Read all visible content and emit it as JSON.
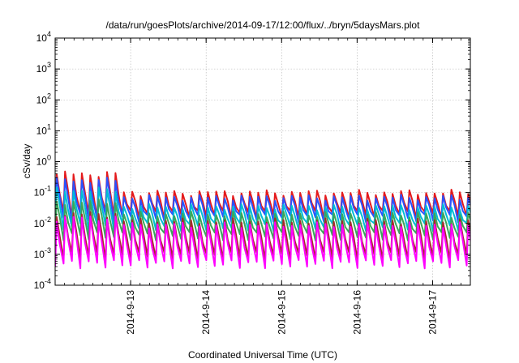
{
  "chart_data": {
    "type": "line",
    "title": "/data/run/goesPlots/archive/2014-09-17/12:00/flux/../bryn/5daysMars.plot",
    "xlabel": "Coordinated Universal Time (UTC)",
    "ylabel": "cSv/day",
    "yscale": "log",
    "xlim": [
      "2014-09-12 00:00",
      "2014-09-17 12:00"
    ],
    "ylim": [
      0.0001,
      10000
    ],
    "grid": true,
    "legend": "none",
    "x_tick_labels": [
      "2014-9-13",
      "2014-9-14",
      "2014-9-15",
      "2014-9-16",
      "2014-9-17"
    ],
    "y_tick_labels": [
      {
        "base": "10",
        "exp": "4"
      },
      {
        "base": "10",
        "exp": "3"
      },
      {
        "base": "10",
        "exp": "2"
      },
      {
        "base": "10",
        "exp": "1"
      },
      {
        "base": "10",
        "exp": "0"
      },
      {
        "base": "10",
        "exp": "-1"
      },
      {
        "base": "10",
        "exp": "-2"
      },
      {
        "base": "10",
        "exp": "-3"
      },
      {
        "base": "10",
        "exp": "-4"
      }
    ],
    "cycle_hours": 2.67,
    "series": [
      {
        "color": "#e41a1c",
        "peak_before": 0.4,
        "peak_after": 0.1,
        "trough": 0.02
      },
      {
        "color": "#2a52ff",
        "peak_before": 0.25,
        "peak_after": 0.07,
        "trough": 0.015
      },
      {
        "color": "#00bcd4",
        "peak_before": 0.12,
        "peak_after": 0.035,
        "trough": 0.008
      },
      {
        "color": "#3aa65b",
        "peak_before": 0.05,
        "peak_after": 0.02,
        "trough": 0.004
      },
      {
        "color": "#a52a2a",
        "peak_before": 0.02,
        "peak_after": 0.012,
        "trough": 0.0009
      },
      {
        "color": "#ff00ff",
        "peak_before": 0.015,
        "peak_after": 0.009,
        "trough": 0.0005
      }
    ]
  }
}
